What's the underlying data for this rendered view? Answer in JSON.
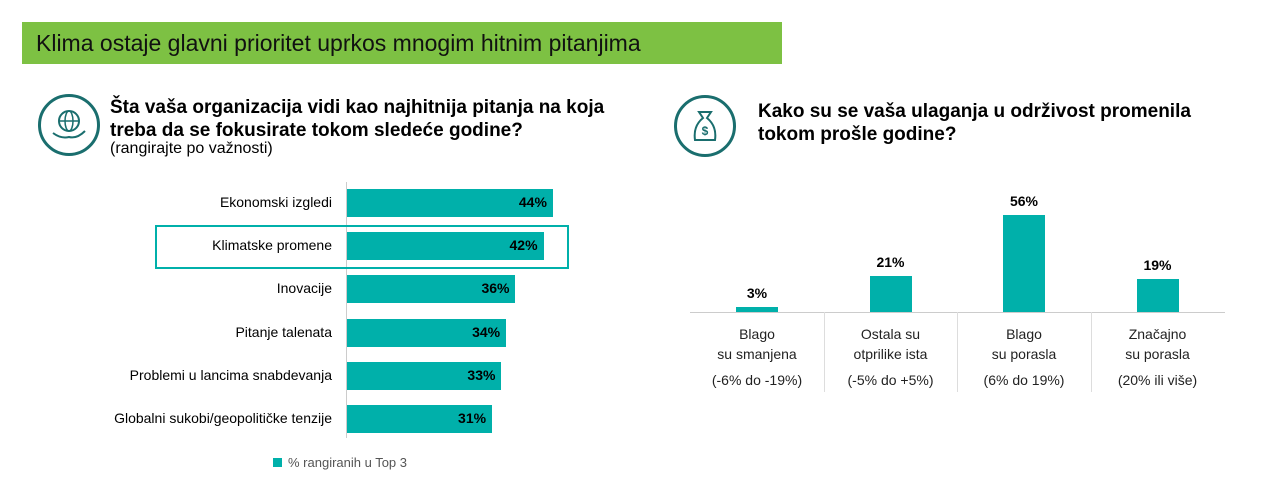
{
  "title": "Klima ostaje glavni prioritet uprkos mnogim hitnim pitanjima",
  "left": {
    "question_line1": "Šta vaša organizacija vidi kao najhitnija pitanja na koja",
    "question_line2": "treba da se fokusirate tokom sledeće godine?",
    "subtitle": "(rangirajte po važnosti)",
    "icon": "globe-in-hand-icon"
  },
  "right": {
    "question_line1": "Kako su se vaša ulaganja u održivost promenila",
    "question_line2": "tokom prošle godine?",
    "icon": "money-bag-icon"
  },
  "colors": {
    "bar": "#00b0aa",
    "title_bg": "#7dc143",
    "icon": "#1a6e6e"
  },
  "chart_data": [
    {
      "type": "bar",
      "orientation": "horizontal",
      "categories": [
        "Ekonomski izgledi",
        "Klimatske promene",
        "Inovacije",
        "Pitanje talenata",
        "Problemi u lancima snabdevanja",
        "Globalni sukobi/geopolitičke tenzije"
      ],
      "values": [
        44,
        42,
        36,
        34,
        33,
        31
      ],
      "labels": [
        "44%",
        "42%",
        "36%",
        "34%",
        "33%",
        "31%"
      ],
      "highlighted": "Klimatske promene",
      "legend": "% rangiranih u Top 3",
      "legend_position": "bottom"
    },
    {
      "type": "bar",
      "categories": [
        [
          "Blago",
          "su smanjena",
          "(-6% do -19%)"
        ],
        [
          "Ostala su",
          "otprilike ista",
          "(-5% do +5%)"
        ],
        [
          "Blago",
          "su porasla",
          "(6% do 19%)"
        ],
        [
          "Značajno",
          "su porasla",
          "(20% ili više)"
        ]
      ],
      "values": [
        3,
        21,
        56,
        19
      ],
      "labels": [
        "3%",
        "21%",
        "56%",
        "19%"
      ]
    }
  ]
}
